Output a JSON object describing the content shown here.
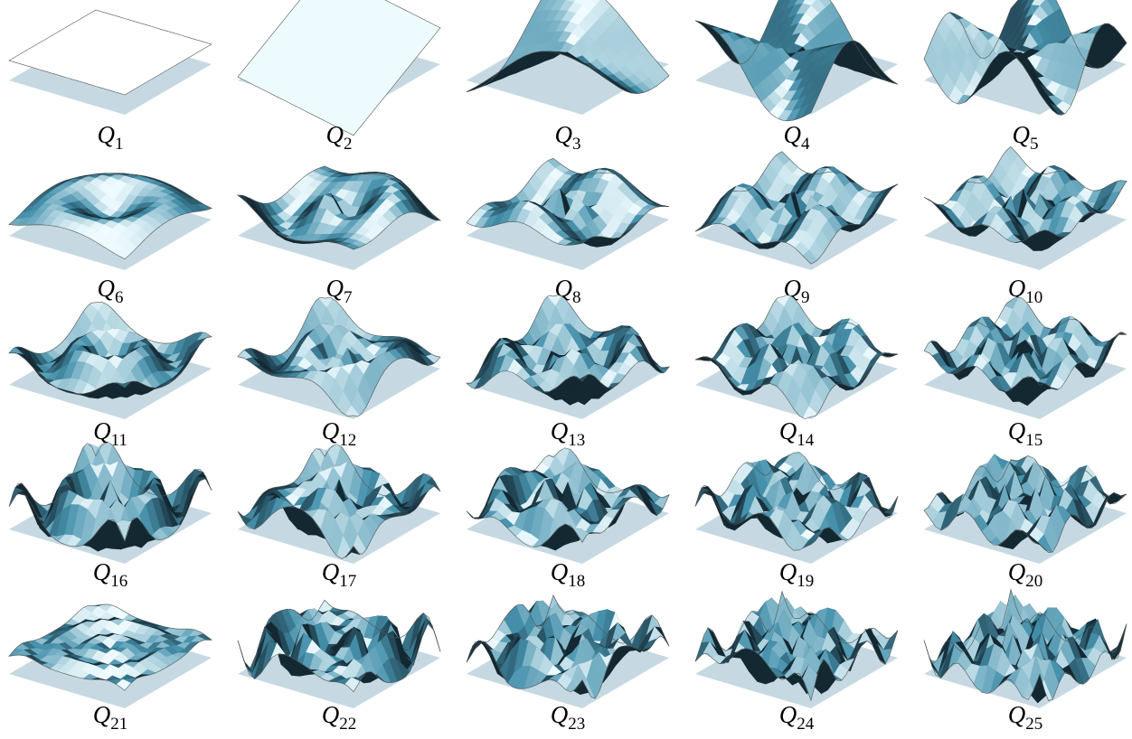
{
  "panels": [
    {
      "symbol": "Q",
      "subscript": "1"
    },
    {
      "symbol": "Q",
      "subscript": "2"
    },
    {
      "symbol": "Q",
      "subscript": "3"
    },
    {
      "symbol": "Q",
      "subscript": "4"
    },
    {
      "symbol": "Q",
      "subscript": "5"
    },
    {
      "symbol": "Q",
      "subscript": "6"
    },
    {
      "symbol": "Q",
      "subscript": "7"
    },
    {
      "symbol": "Q",
      "subscript": "8"
    },
    {
      "symbol": "Q",
      "subscript": "9"
    },
    {
      "symbol": "Q",
      "subscript": "10"
    },
    {
      "symbol": "Q",
      "subscript": "11"
    },
    {
      "symbol": "Q",
      "subscript": "12"
    },
    {
      "symbol": "Q",
      "subscript": "13"
    },
    {
      "symbol": "Q",
      "subscript": "14"
    },
    {
      "symbol": "Q",
      "subscript": "15"
    },
    {
      "symbol": "Q",
      "subscript": "16"
    },
    {
      "symbol": "Q",
      "subscript": "17"
    },
    {
      "symbol": "Q",
      "subscript": "18"
    },
    {
      "symbol": "Q",
      "subscript": "19"
    },
    {
      "symbol": "Q",
      "subscript": "20"
    },
    {
      "symbol": "Q",
      "subscript": "21"
    },
    {
      "symbol": "Q",
      "subscript": "22"
    },
    {
      "symbol": "Q",
      "subscript": "23"
    },
    {
      "symbol": "Q",
      "subscript": "24"
    },
    {
      "symbol": "Q",
      "subscript": "25"
    }
  ]
}
